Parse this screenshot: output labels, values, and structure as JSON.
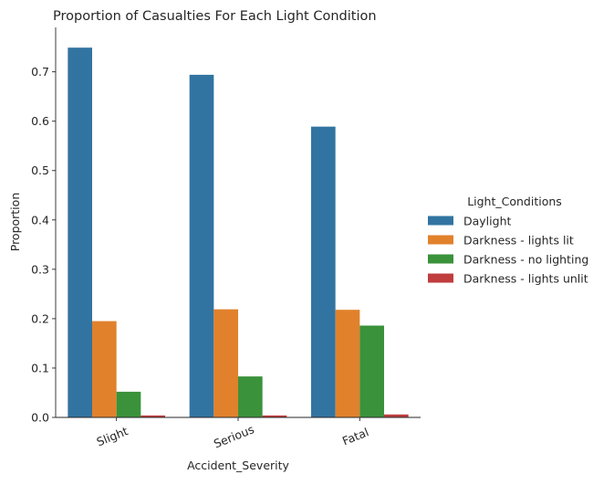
{
  "chart_data": {
    "type": "bar",
    "title": "Proportion of Casualties For Each Light Condition",
    "xlabel": "Accident_Severity",
    "ylabel": "Proportion",
    "categories": [
      "Slight",
      "Serious",
      "Fatal"
    ],
    "ylim": [
      0,
      0.79
    ],
    "yticks": [
      "0.0",
      "0.1",
      "0.2",
      "0.3",
      "0.4",
      "0.5",
      "0.6",
      "0.7"
    ],
    "grid": false,
    "legend": {
      "title": "Light_Conditions",
      "placement": "right"
    },
    "series": [
      {
        "name": "Daylight",
        "color": "#3274a1",
        "values": [
          0.749,
          0.694,
          0.589
        ]
      },
      {
        "name": "Darkness - lights lit",
        "color": "#e1812c",
        "values": [
          0.195,
          0.219,
          0.218
        ]
      },
      {
        "name": "Darkness - no lighting",
        "color": "#3a923a",
        "values": [
          0.052,
          0.083,
          0.186
        ]
      },
      {
        "name": "Darkness - lights unlit",
        "color": "#c03d3e",
        "values": [
          0.004,
          0.004,
          0.006
        ]
      }
    ]
  }
}
